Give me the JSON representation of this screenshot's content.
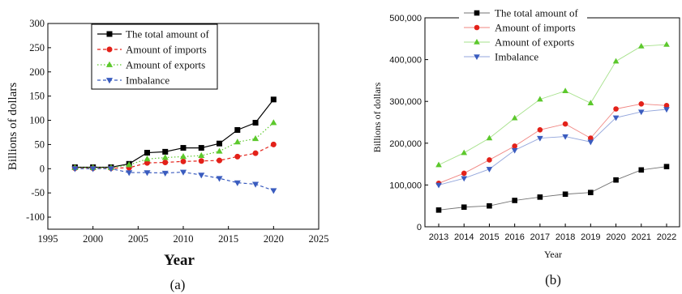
{
  "chart_data": [
    {
      "type": "line",
      "panel_label": "(a)",
      "xlabel": "Year",
      "ylabel": "Billions of dollars",
      "xlim": [
        1995,
        2025
      ],
      "ylim": [
        -125,
        300
      ],
      "xticks": [
        1995,
        2000,
        2005,
        2010,
        2015,
        2020,
        2025
      ],
      "yticks": [
        -100,
        -50,
        0,
        50,
        100,
        150,
        200,
        250,
        300
      ],
      "grid": false,
      "legend_position": "top-center",
      "x": [
        1998,
        2000,
        2002,
        2004,
        2006,
        2008,
        2010,
        2012,
        2014,
        2016,
        2018,
        2020
      ],
      "series": [
        {
          "name": "The total amount of",
          "color": "#000000",
          "marker": "square",
          "dash": "solid",
          "values": [
            3,
            3,
            3,
            10,
            33,
            35,
            43,
            43,
            52,
            80,
            95,
            143
          ]
        },
        {
          "name": "Amount of imports",
          "color": "#e32119",
          "marker": "circle",
          "dash": "dashed",
          "values": [
            1,
            1,
            1,
            2,
            12,
            13,
            15,
            16,
            17,
            25,
            32,
            50
          ]
        },
        {
          "name": "Amount of exports",
          "color": "#5cc82c",
          "marker": "triangle-up",
          "dash": "dotted",
          "values": [
            2,
            2,
            2,
            8,
            20,
            23,
            25,
            27,
            36,
            55,
            62,
            95
          ]
        },
        {
          "name": "Imbalance",
          "color": "#3a5cbf",
          "marker": "triangle-down",
          "dash": "dashed",
          "values": [
            0,
            0,
            0,
            -8,
            -8,
            -9,
            -7,
            -13,
            -20,
            -29,
            -32,
            -45
          ]
        }
      ]
    },
    {
      "type": "line",
      "panel_label": "(b)",
      "xlabel": "Year",
      "ylabel": "Billions of dollars",
      "ylim": [
        0,
        500000
      ],
      "yticks": [
        0,
        100000,
        200000,
        300000,
        400000,
        500000
      ],
      "ytick_labels": [
        "0",
        "100,000",
        "200,000",
        "300,000",
        "400,000",
        "500,000"
      ],
      "categories": [
        "2013",
        "2014",
        "2015",
        "2016",
        "2017",
        "2018",
        "2019",
        "2020",
        "2021",
        "2022"
      ],
      "grid": false,
      "legend_position": "top-left",
      "series": [
        {
          "name": "The total amount of",
          "color": "#000000",
          "marker": "square",
          "values": [
            40000,
            47000,
            50000,
            63000,
            71000,
            78000,
            82000,
            112000,
            136000,
            144000
          ]
        },
        {
          "name": "Amount of imports",
          "color": "#e32119",
          "marker": "circle",
          "values": [
            104000,
            128000,
            160000,
            193000,
            232000,
            246000,
            212000,
            282000,
            294000,
            290000
          ]
        },
        {
          "name": "Amount of exports",
          "color": "#5cc82c",
          "marker": "triangle-up",
          "values": [
            148000,
            177000,
            212000,
            260000,
            305000,
            325000,
            296000,
            396000,
            432000,
            436000
          ]
        },
        {
          "name": "Imbalance",
          "color": "#3a5cbf",
          "marker": "triangle-down",
          "values": [
            100000,
            116000,
            138000,
            183000,
            212000,
            216000,
            203000,
            261000,
            275000,
            281000
          ]
        }
      ]
    }
  ]
}
